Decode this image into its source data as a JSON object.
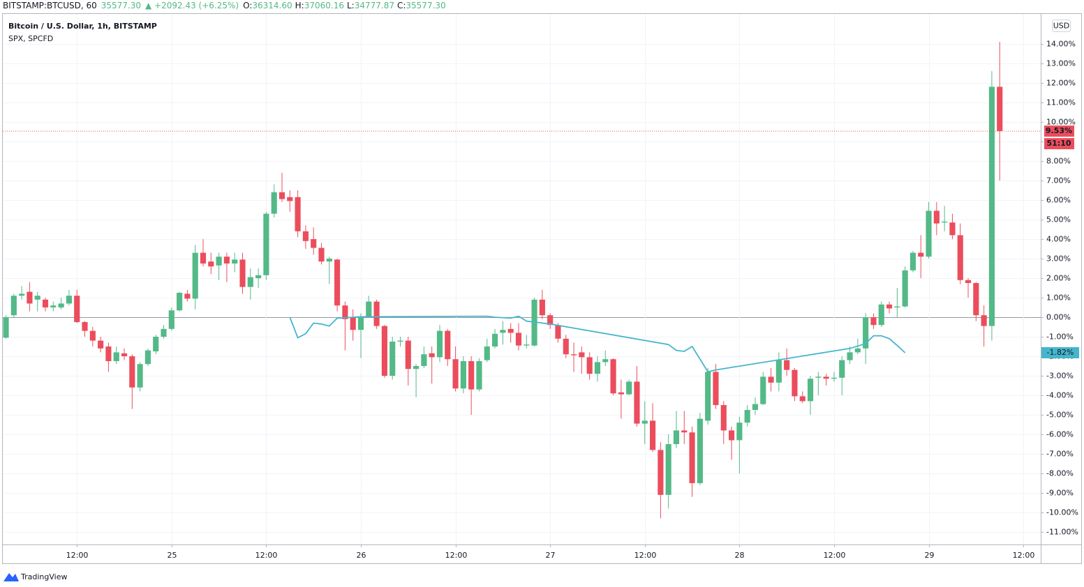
{
  "chart_data": {
    "type": "candlestick",
    "header": {
      "symbol": "BITSTAMP:BTCUSD, 60",
      "last": "35577.30",
      "change": "▲ +2092.43 (+6.25%)",
      "ohlc": [
        {
          "label": "O:",
          "value": "36314.60"
        },
        {
          "label": "H:",
          "value": "37060.16"
        },
        {
          "label": "L:",
          "value": "34777.87"
        },
        {
          "label": "C:",
          "value": "35577.30"
        }
      ]
    },
    "currency": "USD",
    "brand": "TradingView",
    "up_color": "#53b987",
    "down_color": "#eb4d5c",
    "grid": true,
    "xlim": [
      -21.4,
      110.2
    ],
    "xticks": [
      {
        "value": -12,
        "label": "12:00"
      },
      {
        "value": 0,
        "label": "25"
      },
      {
        "value": 12,
        "label": "12:00"
      },
      {
        "value": 24,
        "label": "26"
      },
      {
        "value": 36,
        "label": "12:00"
      },
      {
        "value": 48,
        "label": "27"
      },
      {
        "value": 60,
        "label": "12:00"
      },
      {
        "value": 72,
        "label": "28"
      },
      {
        "value": 84,
        "label": "12:00"
      },
      {
        "value": 96,
        "label": "29"
      },
      {
        "value": 108,
        "label": "12:00"
      }
    ],
    "ylim": [
      -11.64,
      15.46
    ],
    "yticks": [
      {
        "value": -11,
        "label": "-11.00%"
      },
      {
        "value": -10,
        "label": "-10.00%"
      },
      {
        "value": -9,
        "label": "-9.00%"
      },
      {
        "value": -8,
        "label": "-8.00%"
      },
      {
        "value": -7,
        "label": "-7.00%"
      },
      {
        "value": -6,
        "label": "-6.00%"
      },
      {
        "value": -5,
        "label": "-5.00%"
      },
      {
        "value": -4,
        "label": "-4.00%"
      },
      {
        "value": -3,
        "label": "-3.00%"
      },
      {
        "value": -2,
        "label": "-2.00%"
      },
      {
        "value": -1,
        "label": "-1.00%"
      },
      {
        "value": 0,
        "label": "0.00%"
      },
      {
        "value": 1,
        "label": "1.00%"
      },
      {
        "value": 2,
        "label": "2.00%"
      },
      {
        "value": 3,
        "label": "3.00%"
      },
      {
        "value": 4,
        "label": "4.00%"
      },
      {
        "value": 5,
        "label": "5.00%"
      },
      {
        "value": 6,
        "label": "6.00%"
      },
      {
        "value": 7,
        "label": "7.00%"
      },
      {
        "value": 8,
        "label": "8.00%"
      },
      {
        "value": 9,
        "label": "9.00%"
      },
      {
        "value": 10,
        "label": "10.00%"
      },
      {
        "value": 11,
        "label": "11.00%"
      },
      {
        "value": 12,
        "label": "12.00%"
      },
      {
        "value": 13,
        "label": "13.00%"
      },
      {
        "value": 14,
        "label": "14.00%"
      }
    ],
    "series": [
      {
        "name": "Bitcoin / U.S. Dollar, 1h, BITSTAMP",
        "type": "candlestick",
        "x": [
          -21,
          -20,
          -19,
          -18,
          -17,
          -16,
          -15,
          -14,
          -13,
          -12,
          -11,
          -10,
          -9,
          -8,
          -7,
          -6,
          -5,
          -4,
          -3,
          -2,
          -1,
          0,
          1,
          2,
          3,
          4,
          5,
          6,
          7,
          8,
          9,
          10,
          11,
          12,
          13,
          14,
          15,
          16,
          17,
          18,
          19,
          20,
          21,
          22,
          23,
          24,
          25,
          26,
          27,
          28,
          29,
          30,
          31,
          32,
          33,
          34,
          35,
          36,
          37,
          38,
          39,
          40,
          41,
          42,
          43,
          44,
          45,
          46,
          47,
          48,
          49,
          50,
          51,
          52,
          53,
          54,
          55,
          56,
          57,
          58,
          59,
          60,
          61,
          62,
          63,
          64,
          65,
          66,
          67,
          68,
          69,
          70,
          71,
          72,
          73,
          74,
          75,
          76,
          77,
          78,
          79,
          80,
          81,
          82,
          83,
          84,
          85,
          86,
          87,
          88,
          89,
          90,
          91,
          92,
          93,
          94,
          95,
          96,
          97,
          98,
          99,
          100,
          101,
          102,
          103,
          104,
          105
        ],
        "open": [
          -1.05,
          0.1,
          1.1,
          1.3,
          0.9,
          0.9,
          0.5,
          0.5,
          0.7,
          1.1,
          -0.25,
          -0.7,
          -1.2,
          -1.5,
          -2.25,
          -1.85,
          -2.0,
          -3.6,
          -2.4,
          -1.75,
          -1.0,
          -0.6,
          0.35,
          1.2,
          0.95,
          3.3,
          2.85,
          2.65,
          3.1,
          2.75,
          2.95,
          1.55,
          2.0,
          2.15,
          5.3,
          6.4,
          6.15,
          6.15,
          4.4,
          4.0,
          3.55,
          2.85,
          2.95,
          0.6,
          0.0,
          -0.65,
          0.05,
          0.8,
          -0.45,
          -3.0,
          -1.25,
          -1.2,
          -2.65,
          -2.5,
          -1.85,
          -2.05,
          -0.7,
          -2.15,
          -3.65,
          -2.25,
          -3.7,
          -2.2,
          -1.5,
          -0.8,
          -0.6,
          -0.8,
          -1.45,
          -1.45,
          0.9,
          0.1,
          -0.4,
          -1.1,
          -1.9,
          -1.8,
          -2.05,
          -2.9,
          -2.3,
          -2.15,
          -3.85,
          -3.95,
          -3.3,
          -5.45,
          -5.3,
          -6.8,
          -9.1,
          -6.5,
          -5.8,
          -5.9,
          -8.5,
          -5.3,
          -2.8,
          -4.5,
          -5.8,
          -6.3,
          -5.4,
          -4.75,
          -4.45,
          -3.05,
          -3.35,
          -2.2,
          -2.7,
          -4.05,
          -4.3,
          -3.1,
          -3.05,
          -3.15,
          -3.1,
          -2.2,
          -1.8,
          -1.6,
          0.0,
          -0.4,
          0.65,
          0.5,
          0.55,
          2.4,
          3.3,
          3.1,
          5.45,
          4.85,
          4.85,
          4.2,
          1.9,
          1.75,
          0.1,
          -0.45,
          11.8
        ],
        "high": [
          0.1,
          1.2,
          1.6,
          1.8,
          1.3,
          1.0,
          0.8,
          1.0,
          1.4,
          1.4,
          -0.2,
          -0.5,
          -1.0,
          -1.3,
          -1.5,
          -1.6,
          -1.9,
          -2.3,
          -1.6,
          -0.9,
          -0.4,
          0.5,
          1.3,
          1.4,
          3.7,
          4.0,
          3.3,
          3.3,
          3.3,
          3.3,
          3.3,
          2.5,
          2.5,
          5.4,
          6.8,
          7.4,
          6.5,
          6.5,
          4.7,
          4.6,
          3.8,
          3.1,
          3.0,
          0.8,
          0.4,
          0.2,
          1.1,
          0.9,
          -0.4,
          -1.0,
          -1.0,
          -1.0,
          -2.4,
          -1.5,
          -1.5,
          -0.4,
          -0.6,
          -1.5,
          -2.0,
          -2.0,
          -2.1,
          -1.1,
          -0.6,
          -0.2,
          -0.3,
          -0.3,
          -0.9,
          1.0,
          1.4,
          0.2,
          -0.3,
          -0.9,
          -1.3,
          -1.5,
          -1.8,
          -2.0,
          -1.7,
          -2.1,
          -3.2,
          -3.2,
          -2.5,
          -4.3,
          -4.4,
          -6.4,
          -6.0,
          -4.8,
          -4.8,
          -5.6,
          -4.9,
          -2.6,
          -2.4,
          -4.3,
          -5.6,
          -5.1,
          -4.5,
          -4.1,
          -2.8,
          -2.6,
          -1.8,
          -1.6,
          -2.6,
          -3.8,
          -3.0,
          -2.8,
          -2.9,
          -2.8,
          -2.0,
          -1.5,
          -1.1,
          0.2,
          0.2,
          0.8,
          0.8,
          1.5,
          2.6,
          3.4,
          4.2,
          5.9,
          5.9,
          5.7,
          5.3,
          4.8,
          2.0,
          1.8,
          0.6,
          12.6,
          14.1
        ],
        "low": [
          -1.1,
          0.0,
          0.9,
          0.3,
          0.3,
          0.3,
          0.3,
          0.4,
          0.6,
          -0.3,
          -1.0,
          -1.5,
          -1.8,
          -2.8,
          -2.4,
          -2.2,
          -4.7,
          -3.8,
          -2.5,
          -1.9,
          -1.1,
          -0.7,
          0.3,
          0.8,
          0.4,
          2.6,
          2.2,
          1.9,
          1.8,
          2.3,
          1.2,
          0.9,
          1.5,
          1.9,
          5.1,
          5.9,
          5.4,
          4.1,
          3.5,
          3.2,
          2.7,
          1.7,
          0.3,
          -1.7,
          -1.2,
          -2.1,
          0.0,
          -0.6,
          -3.1,
          -3.2,
          -1.5,
          -3.5,
          -4.1,
          -2.6,
          -3.4,
          -2.3,
          -2.5,
          -3.8,
          -3.9,
          -5.0,
          -3.8,
          -2.3,
          -1.6,
          -1.4,
          -1.3,
          -1.7,
          -1.6,
          -1.5,
          -0.1,
          -0.6,
          -1.3,
          -2.1,
          -2.8,
          -2.9,
          -3.2,
          -3.3,
          -2.5,
          -4.0,
          -5.2,
          -4.0,
          -5.6,
          -6.5,
          -6.9,
          -10.3,
          -9.8,
          -6.7,
          -6.5,
          -9.2,
          -8.6,
          -5.5,
          -4.7,
          -6.5,
          -7.3,
          -8.0,
          -5.6,
          -5.0,
          -4.5,
          -3.8,
          -3.8,
          -3.0,
          -4.3,
          -4.4,
          -5.0,
          -4.0,
          -3.5,
          -3.3,
          -4.0,
          -2.4,
          -1.9,
          -2.4,
          -0.6,
          -0.5,
          0.2,
          0.0,
          0.5,
          2.3,
          2.0,
          3.0,
          4.2,
          4.4,
          4.0,
          1.7,
          1.0,
          -0.2,
          -1.5,
          -1.2,
          7.0
        ],
        "close": [
          0.0,
          1.1,
          1.2,
          0.7,
          1.1,
          0.5,
          0.6,
          0.7,
          1.1,
          -0.25,
          -0.7,
          -1.2,
          -1.6,
          -2.25,
          -1.8,
          -2.0,
          -3.6,
          -2.4,
          -1.7,
          -1.0,
          -0.6,
          0.35,
          1.25,
          0.95,
          3.3,
          2.75,
          2.6,
          3.1,
          2.75,
          2.95,
          1.55,
          2.05,
          2.15,
          5.3,
          6.4,
          6.05,
          5.95,
          4.4,
          3.9,
          3.55,
          2.85,
          3.0,
          0.6,
          -0.1,
          -0.65,
          0.05,
          0.8,
          -0.45,
          -3.0,
          -1.25,
          -1.2,
          -2.65,
          -2.5,
          -1.9,
          -2.05,
          -0.7,
          -2.15,
          -3.65,
          -2.25,
          -3.7,
          -2.25,
          -1.5,
          -0.85,
          -0.65,
          -0.8,
          -1.45,
          -1.4,
          0.9,
          0.1,
          -0.4,
          -1.1,
          -1.9,
          -1.95,
          -2.05,
          -2.9,
          -2.3,
          -2.15,
          -3.9,
          -3.95,
          -3.3,
          -5.45,
          -5.3,
          -6.8,
          -9.1,
          -6.5,
          -5.8,
          -5.9,
          -8.5,
          -5.2,
          -2.8,
          -4.5,
          -5.8,
          -6.3,
          -5.4,
          -4.75,
          -4.45,
          -3.05,
          -3.35,
          -2.2,
          -2.7,
          -4.05,
          -4.3,
          -3.15,
          -3.05,
          -3.15,
          -3.1,
          -2.2,
          -1.8,
          -1.6,
          0.0,
          -0.4,
          0.65,
          0.45,
          0.55,
          2.4,
          3.3,
          3.1,
          5.45,
          4.8,
          4.9,
          4.2,
          1.9,
          1.75,
          0.1,
          -0.45,
          11.8,
          9.53
        ],
        "close_label": "9.53%",
        "countdown": "51:10"
      },
      {
        "name": "SPX, SPCFD",
        "type": "line",
        "color": "#45b5cc",
        "x": [
          15,
          16,
          17,
          18,
          19,
          20,
          21,
          24,
          40,
          41,
          43,
          44,
          45,
          47,
          48,
          63,
          64,
          65,
          66,
          68,
          69,
          86,
          88,
          89,
          90,
          91,
          92,
          93
        ],
        "values": [
          0.0,
          -1.05,
          -0.85,
          -0.3,
          -0.35,
          -0.45,
          -0.05,
          0.02,
          0.05,
          0.0,
          -0.05,
          0.05,
          -0.2,
          -0.3,
          -0.35,
          -1.4,
          -1.7,
          -1.75,
          -1.5,
          -2.8,
          -2.7,
          -1.6,
          -1.35,
          -0.95,
          -0.95,
          -1.1,
          -1.45,
          -1.82
        ],
        "last_label": "-1.82%"
      }
    ]
  }
}
